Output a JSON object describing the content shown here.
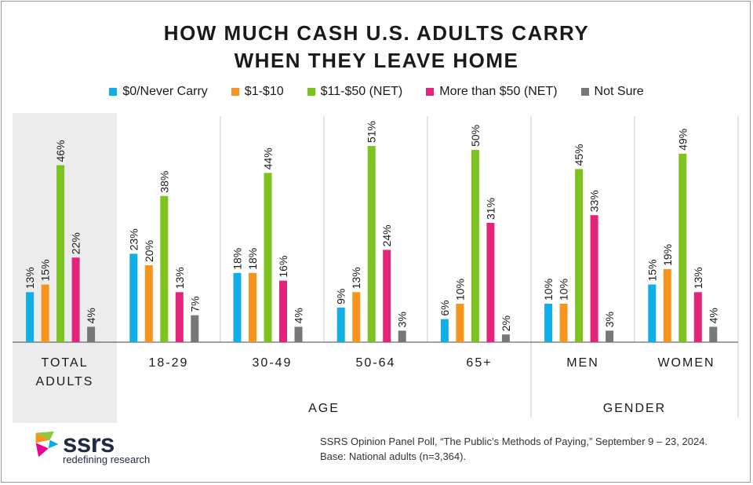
{
  "chart_data": {
    "type": "bar",
    "title_line1": "HOW MUCH CASH U.S. ADULTS CARRY",
    "title_line2": "WHEN THEY LEAVE HOME",
    "legend_placement": "top",
    "series": [
      {
        "name": "$0/Never Carry",
        "color": "#12aee6",
        "values": [
          13,
          23,
          18,
          9,
          6,
          10,
          15
        ]
      },
      {
        "name": "$1-$10",
        "color": "#f7941d",
        "values": [
          15,
          20,
          18,
          13,
          10,
          10,
          19
        ]
      },
      {
        "name": "$11-$50 (NET)",
        "color": "#7dc21e",
        "values": [
          46,
          38,
          44,
          51,
          50,
          45,
          49
        ]
      },
      {
        "name": "More than $50 (NET)",
        "color": "#e2257a",
        "values": [
          22,
          13,
          16,
          24,
          31,
          33,
          13
        ]
      },
      {
        "name": "Not Sure",
        "color": "#777777",
        "values": [
          4,
          7,
          4,
          3,
          2,
          3,
          4
        ]
      }
    ],
    "categories": [
      "TOTAL ADULTS",
      "18-29",
      "30-49",
      "50-64",
      "65+",
      "MEN",
      "WOMEN"
    ],
    "sections": [
      {
        "label": "AGE",
        "categories": [
          "18-29",
          "30-49",
          "50-64",
          "65+"
        ]
      },
      {
        "label": "GENDER",
        "categories": [
          "MEN",
          "WOMEN"
        ]
      }
    ],
    "value_suffix": "%",
    "ylim": [
      0,
      55
    ],
    "grid": false
  },
  "category_labels": {
    "total_line1": "TOTAL",
    "total_line2": "ADULTS",
    "c1": "18-29",
    "c2": "30-49",
    "c3": "50-64",
    "c4": "65+",
    "c5": "MEN",
    "c6": "WOMEN"
  },
  "section_labels": {
    "age": "AGE",
    "gender": "GENDER"
  },
  "source": {
    "line1": "SSRS Opinion Panel Poll, “The Public’s Methods of Paying,” September 9 – 23, 2024.",
    "line2": "Base: National adults (n=3,364)."
  },
  "logo": {
    "name": "ssrs",
    "tagline": "redefining research"
  },
  "colors": {
    "total_bg": "#ececec",
    "axis": "#444444",
    "divider": "#c8c8c8"
  }
}
